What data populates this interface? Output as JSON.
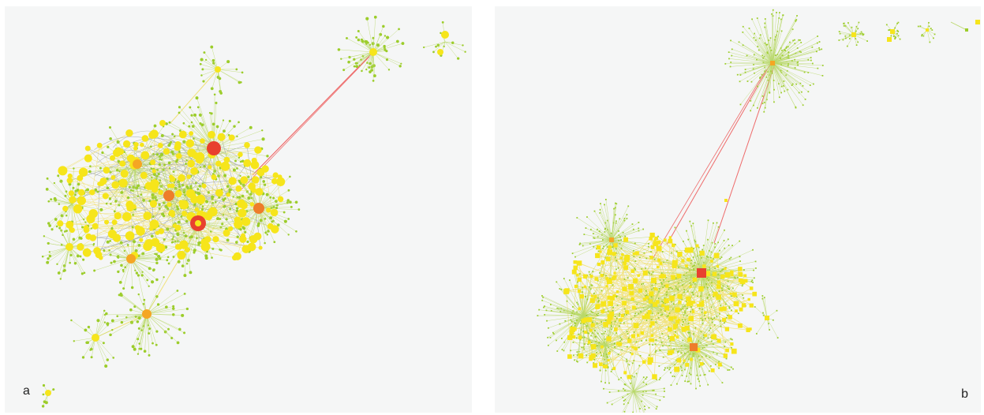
{
  "figure": {
    "panels": [
      {
        "id": "a",
        "label": "a"
      },
      {
        "id": "b",
        "label": "b"
      }
    ]
  },
  "colors": {
    "background": "#f5f6f6",
    "leaf_green": "#9ccd2a",
    "node_yellow": "#f6e51b",
    "hub_orange": "#f5a623",
    "hub_dark_orange": "#ee7d2a",
    "hub_red": "#e8402f",
    "edge_green": "#b9d86a",
    "edge_yellow": "#f1e27a",
    "edge_red": "#ee6b6b",
    "edge_grey": "#9aa3a3"
  }
}
